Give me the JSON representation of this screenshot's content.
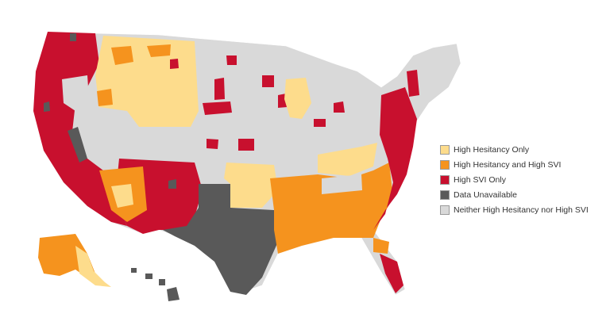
{
  "map": {
    "categories": [
      {
        "key": "hesitancy_only",
        "label": "High Hesitancy Only",
        "color": "#fddc8c"
      },
      {
        "key": "hesitancy_and_svi",
        "label": "High Hesitancy and High SVI",
        "color": "#f5931e"
      },
      {
        "key": "svi_only",
        "label": "High SVI Only",
        "color": "#c8102e"
      },
      {
        "key": "unavailable",
        "label": "Data Unavailable",
        "color": "#595959"
      },
      {
        "key": "neither",
        "label": "Neither High Hesitancy nor High SVI",
        "color": "#d9d9d9"
      }
    ]
  }
}
